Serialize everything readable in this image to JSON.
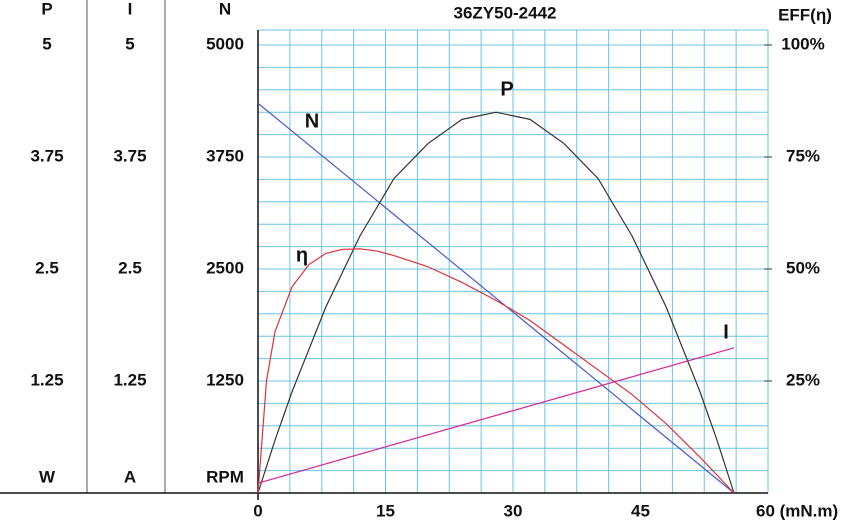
{
  "chart_data": {
    "type": "line",
    "title": "36ZY50-2442",
    "xlim": [
      0,
      60
    ],
    "xticks": [
      0,
      15,
      30,
      45,
      {
        "value": 60,
        "label": "60 (mN.m)"
      }
    ],
    "axes": [
      {
        "name": "P",
        "unit": "W",
        "ylim": [
          0,
          5
        ],
        "yticks": [
          1.25,
          2.5,
          3.75,
          5
        ]
      },
      {
        "name": "I",
        "unit": "A",
        "ylim": [
          0,
          5
        ],
        "yticks": [
          1.25,
          2.5,
          3.75,
          5
        ]
      },
      {
        "name": "N",
        "unit": "RPM",
        "ylim": [
          0,
          5000
        ],
        "yticks": [
          1250,
          2500,
          3750,
          5000
        ]
      }
    ],
    "y2_title": "EFF(η)",
    "y2lim": [
      0,
      100
    ],
    "y2ticks": [
      {
        "value": 25,
        "label": "25%"
      },
      {
        "value": 50,
        "label": "50%"
      },
      {
        "value": 75,
        "label": "75%"
      },
      {
        "value": 100,
        "label": "100%"
      }
    ],
    "grid": true,
    "series": [
      {
        "name": "N",
        "color": "#4a5bc4",
        "axis": "N",
        "x": [
          0,
          56
        ],
        "values": [
          4350,
          0
        ]
      },
      {
        "name": "P",
        "color": "#333333",
        "axis": "P",
        "x": [
          0,
          2,
          4,
          8,
          12,
          16,
          20,
          24,
          28,
          32,
          36,
          40,
          44,
          48,
          52,
          54,
          56
        ],
        "values": [
          0,
          0.59,
          1.13,
          2.08,
          2.87,
          3.51,
          3.9,
          4.17,
          4.25,
          4.17,
          3.9,
          3.51,
          2.87,
          2.08,
          1.13,
          0.59,
          0
        ]
      },
      {
        "name": "η",
        "color": "#e0303a",
        "axis": "y2",
        "x": [
          0,
          1,
          2,
          4,
          6,
          8,
          10,
          12,
          14,
          16,
          20,
          24,
          28,
          32,
          36,
          40,
          44,
          48,
          52,
          56
        ],
        "values": [
          0,
          25,
          36,
          46,
          51,
          53.5,
          54.4,
          54.5,
          54,
          53,
          50.5,
          47,
          43,
          38.5,
          33,
          27.5,
          22,
          15.5,
          8,
          0
        ]
      },
      {
        "name": "I",
        "color": "#d6259a",
        "axis": "I",
        "x": [
          0,
          56
        ],
        "values": [
          0.11,
          1.62
        ]
      }
    ]
  }
}
